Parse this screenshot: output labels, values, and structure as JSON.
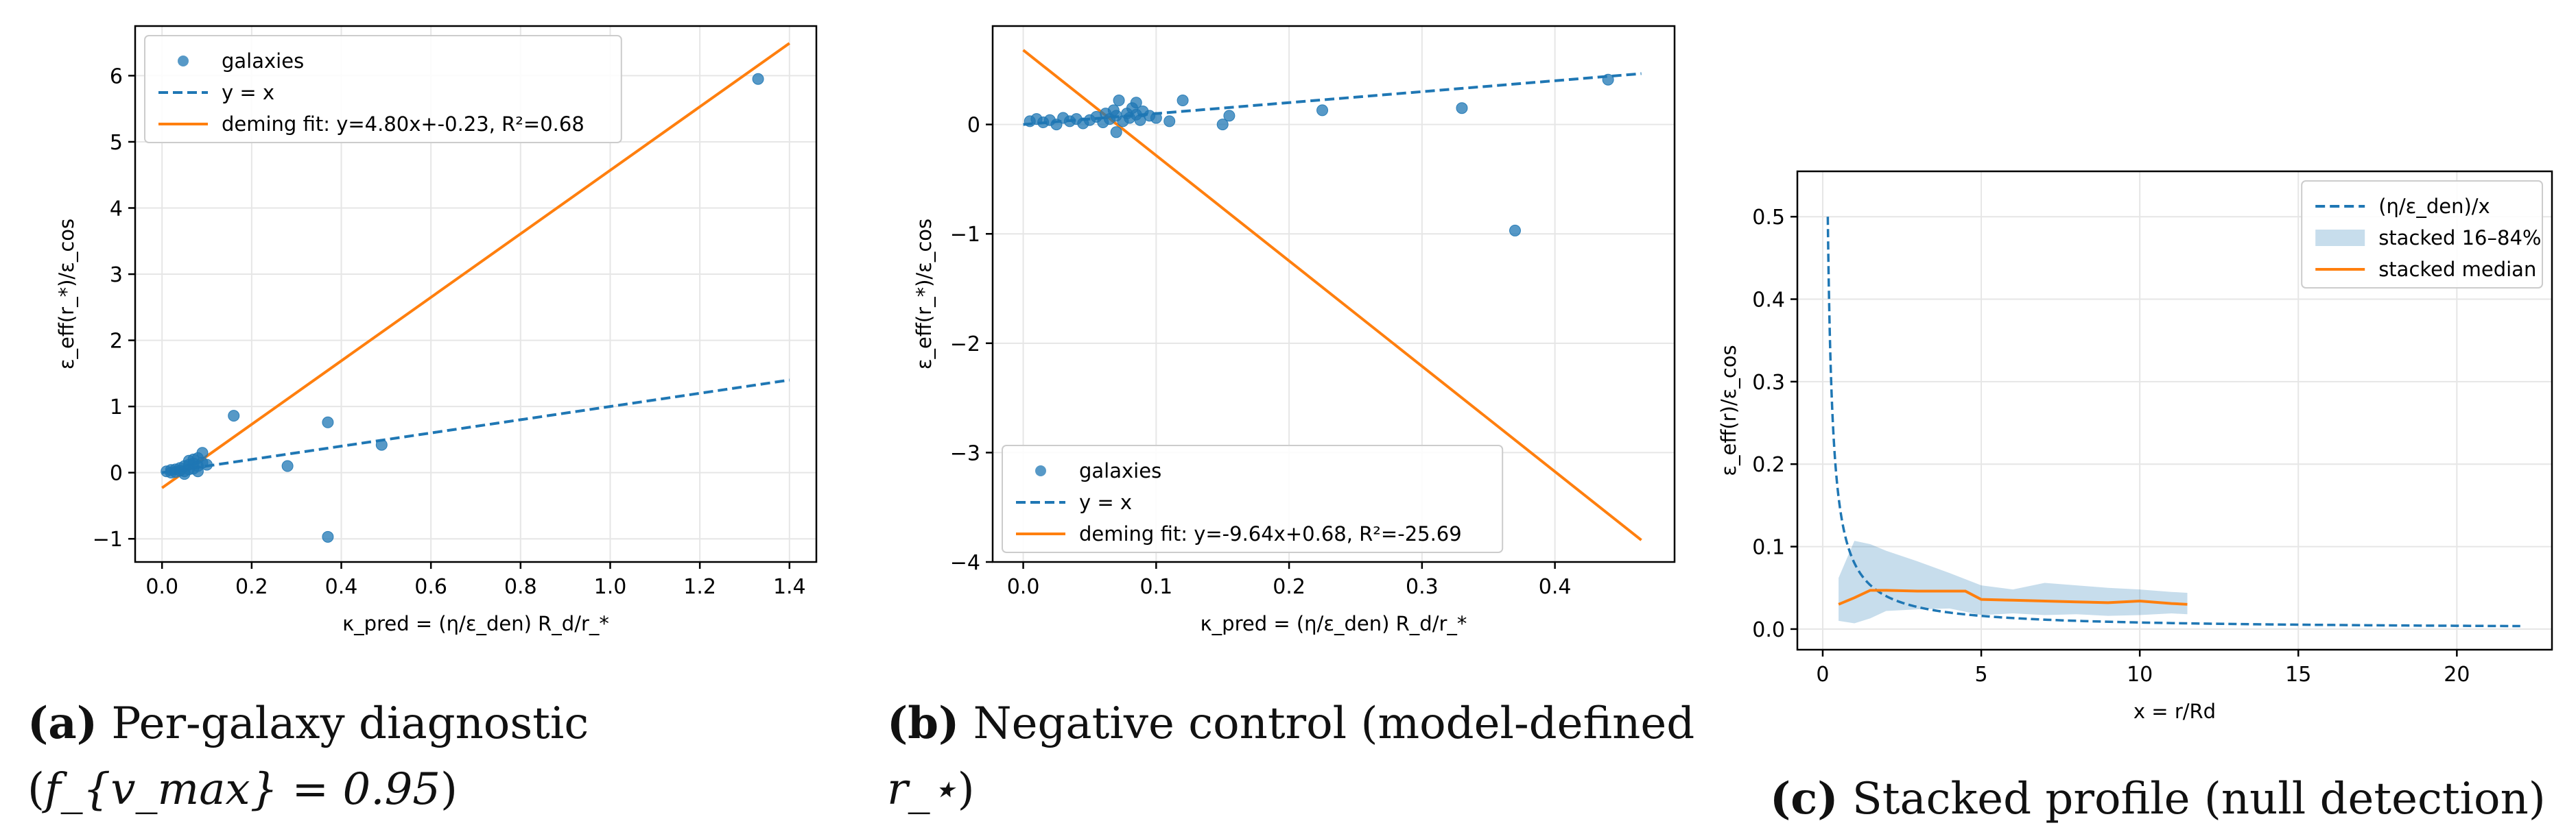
{
  "chart_data": [
    {
      "type": "scatter",
      "panel_label": "(a)",
      "caption_text": "Per-galaxy diagnostic (",
      "caption_math": "f_{v_max} = 0.95",
      "caption_close": ")",
      "xlabel": "κ_pred = (η/ε_den) R_d/r_*",
      "ylabel": "ε_eff(r_*)/ε_cos",
      "xlim": [
        -0.06,
        1.46
      ],
      "ylim": [
        -1.35,
        6.75
      ],
      "xticks": [
        0.0,
        0.2,
        0.4,
        0.6,
        0.8,
        1.0,
        1.2,
        1.4
      ],
      "xtick_labels": [
        "0.0",
        "0.2",
        "0.4",
        "0.6",
        "0.8",
        "1.0",
        "1.2",
        "1.4"
      ],
      "yticks": [
        -1,
        0,
        1,
        2,
        3,
        4,
        5,
        6
      ],
      "ytick_labels": [
        "−1",
        "0",
        "1",
        "2",
        "3",
        "4",
        "5",
        "6"
      ],
      "grid": true,
      "legend_position": "upper-left",
      "legend": [
        "galaxies",
        "y = x",
        "deming fit: y=4.80x+-0.23, R²=0.68"
      ],
      "series": [
        {
          "name": "galaxies",
          "kind": "points",
          "color": "#1f77b4",
          "points": [
            [
              0.01,
              0.02
            ],
            [
              0.02,
              0.04
            ],
            [
              0.02,
              0.0
            ],
            [
              0.03,
              0.05
            ],
            [
              0.03,
              0.01
            ],
            [
              0.04,
              0.03
            ],
            [
              0.04,
              0.07
            ],
            [
              0.05,
              0.02
            ],
            [
              0.05,
              0.1
            ],
            [
              0.06,
              0.05
            ],
            [
              0.06,
              0.12
            ],
            [
              0.06,
              0.18
            ],
            [
              0.07,
              0.06
            ],
            [
              0.07,
              0.14
            ],
            [
              0.07,
              0.2
            ],
            [
              0.08,
              0.1
            ],
            [
              0.08,
              0.22
            ],
            [
              0.09,
              0.15
            ],
            [
              0.09,
              0.3
            ],
            [
              0.1,
              0.12
            ],
            [
              0.05,
              -0.02
            ],
            [
              0.08,
              0.02
            ],
            [
              0.16,
              0.86
            ],
            [
              0.28,
              0.1
            ],
            [
              0.37,
              0.76
            ],
            [
              0.37,
              -0.97
            ],
            [
              0.49,
              0.42
            ],
            [
              1.33,
              5.95
            ]
          ]
        },
        {
          "name": "y = x",
          "kind": "line",
          "style": "dashed",
          "color": "#1f77b4",
          "x": [
            0.0,
            1.4
          ],
          "y": [
            0.0,
            1.4
          ]
        },
        {
          "name": "deming fit: y=4.80x+-0.23, R²=0.68",
          "kind": "line",
          "style": "solid",
          "color": "#ff7f0e",
          "x": [
            0.0,
            1.4
          ],
          "y": [
            -0.23,
            6.49
          ]
        }
      ]
    },
    {
      "type": "scatter",
      "panel_label": "(b)",
      "caption_text": "Negative control (model-defined ",
      "caption_math": "r_⋆",
      "caption_close": ")",
      "xlabel": "κ_pred = (η/ε_den) R_d/r_*",
      "ylabel": "ε_eff(r_*)/ε_cos",
      "xlim": [
        -0.023,
        0.49
      ],
      "ylim": [
        -4.0,
        0.9
      ],
      "xticks": [
        0.0,
        0.1,
        0.2,
        0.3,
        0.4
      ],
      "xtick_labels": [
        "0.0",
        "0.1",
        "0.2",
        "0.3",
        "0.4"
      ],
      "yticks": [
        -4,
        -3,
        -2,
        -1,
        0
      ],
      "ytick_labels": [
        "−4",
        "−3",
        "−2",
        "−1",
        "0"
      ],
      "grid": true,
      "legend_position": "lower-left",
      "legend": [
        "galaxies",
        "y = x",
        "deming fit: y=-9.64x+0.68, R²=-25.69"
      ],
      "series": [
        {
          "name": "galaxies",
          "kind": "points",
          "color": "#1f77b4",
          "points": [
            [
              0.005,
              0.03
            ],
            [
              0.01,
              0.05
            ],
            [
              0.015,
              0.02
            ],
            [
              0.02,
              0.04
            ],
            [
              0.025,
              0.0
            ],
            [
              0.03,
              0.06
            ],
            [
              0.035,
              0.03
            ],
            [
              0.04,
              0.05
            ],
            [
              0.045,
              0.01
            ],
            [
              0.05,
              0.04
            ],
            [
              0.055,
              0.07
            ],
            [
              0.06,
              0.02
            ],
            [
              0.062,
              0.1
            ],
            [
              0.065,
              0.05
            ],
            [
              0.068,
              0.13
            ],
            [
              0.07,
              0.08
            ],
            [
              0.072,
              0.22
            ],
            [
              0.075,
              0.03
            ],
            [
              0.078,
              0.1
            ],
            [
              0.08,
              0.06
            ],
            [
              0.082,
              0.15
            ],
            [
              0.085,
              0.09
            ],
            [
              0.088,
              0.04
            ],
            [
              0.09,
              0.12
            ],
            [
              0.095,
              0.08
            ],
            [
              0.1,
              0.06
            ],
            [
              0.11,
              0.03
            ],
            [
              0.12,
              0.22
            ],
            [
              0.07,
              -0.07
            ],
            [
              0.085,
              0.2
            ],
            [
              0.15,
              0.0
            ],
            [
              0.155,
              0.08
            ],
            [
              0.225,
              0.13
            ],
            [
              0.33,
              0.15
            ],
            [
              0.37,
              -0.97
            ],
            [
              0.44,
              0.41
            ]
          ]
        },
        {
          "name": "y = x",
          "kind": "line",
          "style": "dashed",
          "color": "#1f77b4",
          "x": [
            0.0,
            0.465
          ],
          "y": [
            0.0,
            0.465
          ]
        },
        {
          "name": "deming fit: y=-9.64x+0.68, R²=-25.69",
          "kind": "line",
          "style": "solid",
          "color": "#ff7f0e",
          "x": [
            0.0,
            0.465
          ],
          "y": [
            0.68,
            -3.8
          ]
        }
      ]
    },
    {
      "type": "line",
      "panel_label": "(c)",
      "caption_text": "Stacked profile (null detection)",
      "caption_math": "",
      "caption_close": "",
      "xlabel": "x = r/Rd",
      "ylabel": "ε_eff(r)/ε_cos",
      "xlim": [
        -0.8,
        23.0
      ],
      "ylim": [
        -0.025,
        0.555
      ],
      "xticks": [
        0,
        5,
        10,
        15,
        20
      ],
      "xtick_labels": [
        "0",
        "5",
        "10",
        "15",
        "20"
      ],
      "yticks": [
        0.0,
        0.1,
        0.2,
        0.3,
        0.4,
        0.5
      ],
      "ytick_labels": [
        "0.0",
        "0.1",
        "0.2",
        "0.3",
        "0.4",
        "0.5"
      ],
      "grid": true,
      "legend_position": "upper-right",
      "legend": [
        "(η/ε_den)/x",
        "stacked 16–84%",
        "stacked median"
      ],
      "series": [
        {
          "name": "(η/ε_den)/x",
          "kind": "curve",
          "style": "dashed",
          "color": "#1f77b4",
          "coefficient": 0.08,
          "x_range": [
            0.16,
            22.0
          ]
        },
        {
          "name": "stacked 16–84%",
          "kind": "band",
          "color": "#1f77b4",
          "x": [
            0.5,
            1.0,
            1.5,
            2.0,
            3.0,
            4.0,
            5.0,
            6.0,
            7.0,
            8.0,
            9.0,
            10.0,
            11.0,
            11.5
          ],
          "lower": [
            0.01,
            0.007,
            0.013,
            0.022,
            0.024,
            0.025,
            0.017,
            0.019,
            0.017,
            0.018,
            0.016,
            0.017,
            0.019,
            0.018
          ],
          "upper": [
            0.062,
            0.107,
            0.103,
            0.095,
            0.082,
            0.068,
            0.053,
            0.048,
            0.056,
            0.053,
            0.05,
            0.048,
            0.045,
            0.044
          ]
        },
        {
          "name": "stacked median",
          "kind": "line",
          "style": "solid",
          "color": "#ff7f0e",
          "x": [
            0.5,
            1.0,
            1.5,
            2.0,
            3.0,
            4.0,
            4.5,
            5.0,
            6.0,
            7.0,
            8.0,
            9.0,
            10.0,
            11.0,
            11.5
          ],
          "y": [
            0.03,
            0.038,
            0.047,
            0.047,
            0.046,
            0.046,
            0.046,
            0.036,
            0.035,
            0.034,
            0.033,
            0.032,
            0.034,
            0.031,
            0.03
          ]
        }
      ]
    }
  ]
}
